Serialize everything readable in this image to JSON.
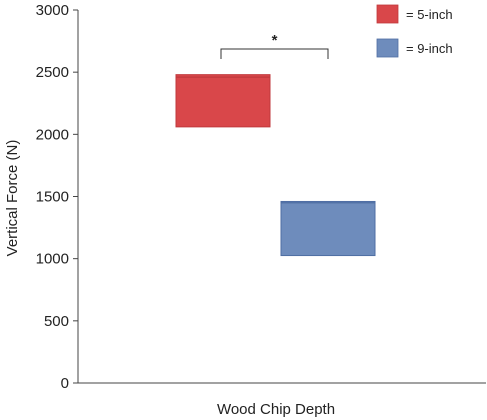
{
  "chart_data": {
    "type": "box",
    "xlabel": "Wood Chip Depth",
    "ylabel": "Vertical Force (N)",
    "ylim": [
      0,
      3000
    ],
    "yticks": [
      0,
      500,
      1000,
      1500,
      2000,
      2500,
      3000
    ],
    "grid": false,
    "legend_position": "top-right",
    "series": [
      {
        "name": "= 5-inch",
        "color": "#d9474a",
        "edge": "#c0393c",
        "q1": 2060,
        "median": 2460,
        "q3": 2480
      },
      {
        "name": "= 9-inch",
        "color": "#6e8cbc",
        "edge": "#4f6ea3",
        "q1": 1025,
        "median": 1450,
        "q3": 1460
      }
    ],
    "annotations": [
      {
        "text": "*",
        "between": [
          "= 5-inch",
          "= 9-inch"
        ]
      }
    ]
  }
}
